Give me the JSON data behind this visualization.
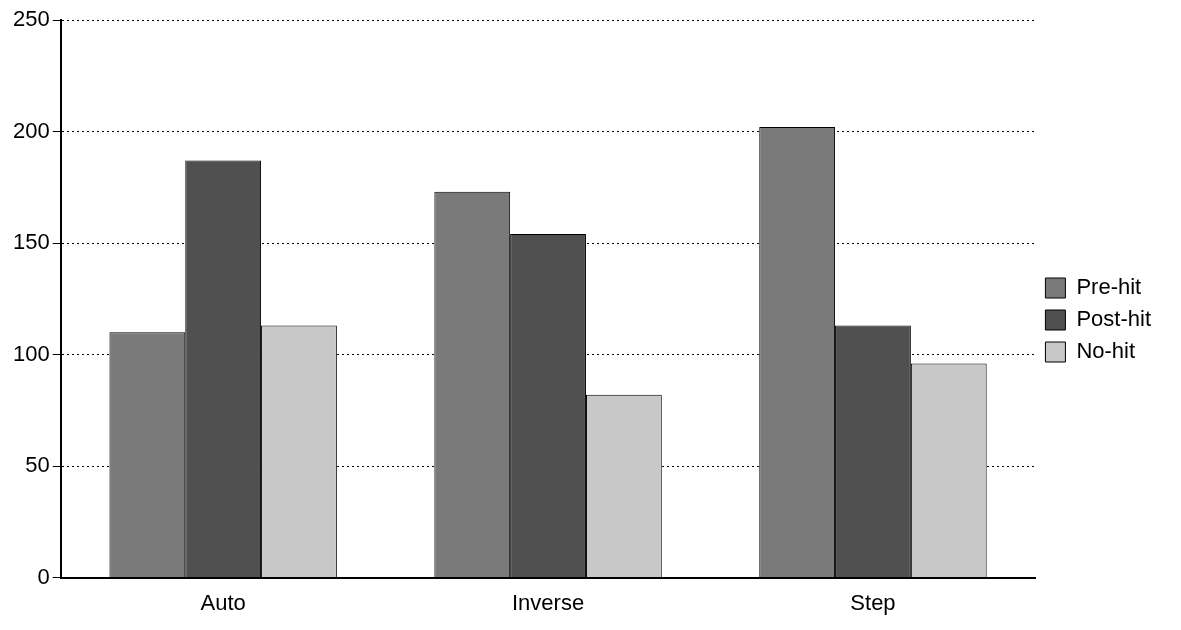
{
  "chart_data": {
    "type": "bar",
    "categories": [
      "Auto",
      "Inverse",
      "Step"
    ],
    "series": [
      {
        "name": "Pre-hit",
        "color": "#7a7a7a",
        "values": [
          110,
          173,
          202
        ]
      },
      {
        "name": "Post-hit",
        "color": "#505050",
        "values": [
          187,
          154,
          113
        ]
      },
      {
        "name": "No-hit",
        "color": "#c8c8c8",
        "values": [
          113,
          82,
          96
        ]
      }
    ],
    "ylim": [
      0,
      250
    ],
    "yticks": [
      0,
      50,
      100,
      150,
      200,
      250
    ],
    "grid": "y",
    "legend": "right"
  }
}
